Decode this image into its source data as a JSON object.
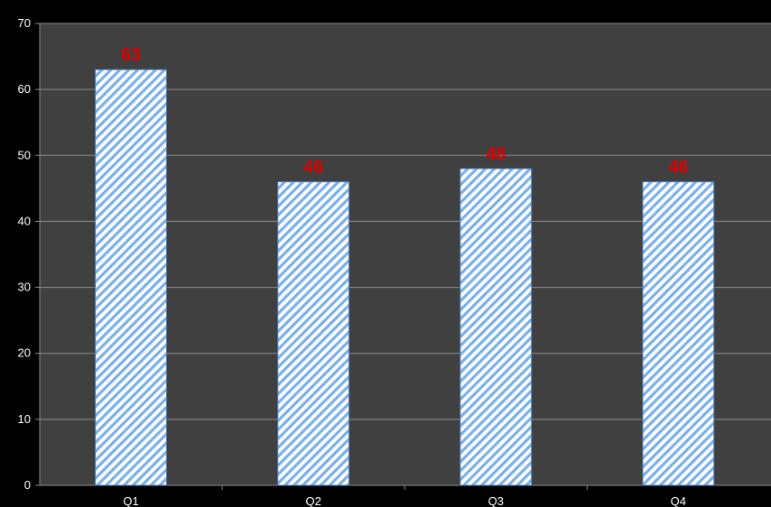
{
  "chart_data": {
    "type": "bar",
    "title": "",
    "xlabel": "",
    "ylabel": "",
    "categories": [
      "Q1",
      "Q2",
      "Q3",
      "Q4"
    ],
    "values": [
      63,
      46,
      48,
      46
    ],
    "data_labels": [
      "63",
      "46",
      "48",
      "46"
    ],
    "ylim": [
      0,
      70
    ],
    "y_ticks": [
      0,
      10,
      20,
      30,
      40,
      50,
      60,
      70
    ],
    "y_tick_labels": [
      "0",
      "10",
      "20",
      "30",
      "40",
      "50",
      "60",
      "70"
    ],
    "grid": true,
    "legend": "none",
    "colors": {
      "page_background": "#000000",
      "plot_background": "#404040",
      "gridline": "#8c8c8c",
      "bar_fill": "#ffffff",
      "bar_stripe": "#7ab0ea",
      "bar_border": "#4f7fc0",
      "data_label": "#e00000",
      "tick_text": "#ffffff"
    }
  }
}
